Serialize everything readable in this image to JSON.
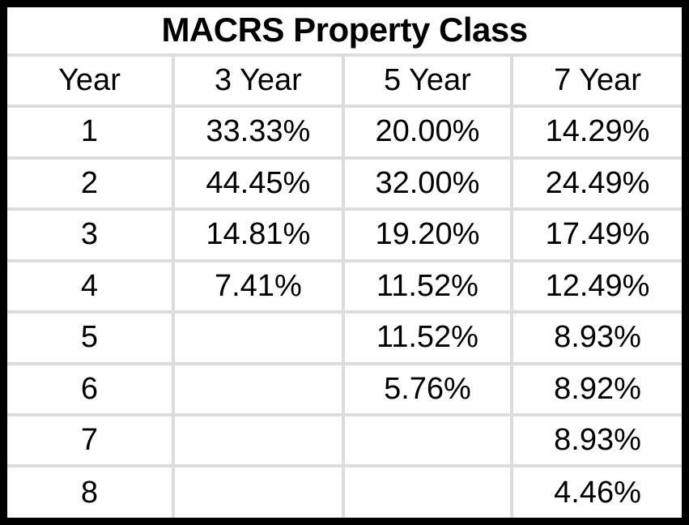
{
  "title": "MACRS Property Class",
  "headers": [
    "Year",
    "3 Year",
    "5 Year",
    "7 Year"
  ],
  "rows": [
    [
      "1",
      "33.33%",
      "20.00%",
      "14.29%"
    ],
    [
      "2",
      "44.45%",
      "32.00%",
      "24.49%"
    ],
    [
      "3",
      "14.81%",
      "19.20%",
      "17.49%"
    ],
    [
      "4",
      "7.41%",
      "11.52%",
      "12.49%"
    ],
    [
      "5",
      "",
      "11.52%",
      "8.93%"
    ],
    [
      "6",
      "",
      "5.76%",
      "8.92%"
    ],
    [
      "7",
      "",
      "",
      "8.93%"
    ],
    [
      "8",
      "",
      "",
      "4.46%"
    ]
  ],
  "colors": {
    "outer_border": "#000000",
    "gridline": "#dcdcdc",
    "text": "#000000",
    "background": "#ffffff"
  },
  "chart_data": {
    "type": "table",
    "title": "MACRS Property Class",
    "columns": [
      "Year",
      "3 Year",
      "5 Year",
      "7 Year"
    ],
    "rows": [
      [
        "1",
        "33.33%",
        "20.00%",
        "14.29%"
      ],
      [
        "2",
        "44.45%",
        "32.00%",
        "24.49%"
      ],
      [
        "3",
        "14.81%",
        "19.20%",
        "17.49%"
      ],
      [
        "4",
        "7.41%",
        "11.52%",
        "12.49%"
      ],
      [
        "5",
        "",
        "11.52%",
        "8.93%"
      ],
      [
        "6",
        "",
        "5.76%",
        "8.92%"
      ],
      [
        "7",
        "",
        "",
        "8.93%"
      ],
      [
        "8",
        "",
        "",
        "4.46%"
      ]
    ],
    "notes": "MACRS depreciation percentages by recovery year for 3-, 5-, and 7-year property classes"
  }
}
